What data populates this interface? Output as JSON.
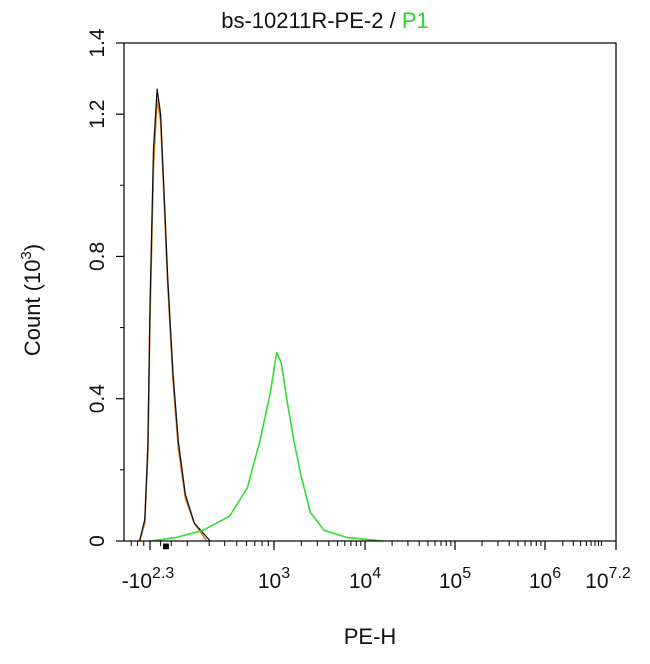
{
  "chart_data": {
    "type": "area",
    "title": {
      "sample": "bs-10211R-PE-2",
      "separator": "/",
      "gate": "P1"
    },
    "xlabel": "PE-H",
    "ylabel": "Count (10^3)",
    "ylabel_parts": {
      "base": "Count (10",
      "exp": "3",
      "close": ")"
    },
    "x_scale": "biexponential (log10 of PE-H)",
    "xlim": [
      -200,
      15800000
    ],
    "ylim": [
      0,
      1.4
    ],
    "x_ticks": [
      {
        "prefix": "-10",
        "exp": "2.3",
        "value": -200
      },
      {
        "prefix": "10",
        "exp": "3",
        "value": 1000
      },
      {
        "prefix": "10",
        "exp": "4",
        "value": 10000
      },
      {
        "prefix": "10",
        "exp": "5",
        "value": 100000
      },
      {
        "prefix": "10",
        "exp": "6",
        "value": 1000000
      },
      {
        "prefix": "10",
        "exp": "7.2",
        "value": 15800000
      }
    ],
    "y_ticks": [
      "0",
      "0.4",
      "0.8",
      "1.2",
      "1.4"
    ],
    "y_tick_values": [
      0,
      0.4,
      0.8,
      1.2,
      1.4
    ],
    "series": [
      {
        "color": "#e08a2a",
        "points": [
          [
            2.2,
            0.0
          ],
          [
            2.25,
            0.05
          ],
          [
            2.28,
            0.25
          ],
          [
            2.3,
            0.62
          ],
          [
            2.32,
            1.05
          ],
          [
            2.34,
            1.24
          ],
          [
            2.36,
            1.18
          ],
          [
            2.38,
            0.95
          ],
          [
            2.4,
            0.72
          ],
          [
            2.43,
            0.45
          ],
          [
            2.46,
            0.26
          ],
          [
            2.5,
            0.12
          ],
          [
            2.55,
            0.05
          ],
          [
            2.62,
            0.0
          ]
        ]
      },
      {
        "color": "#111111",
        "points": [
          [
            2.2,
            0.0
          ],
          [
            2.25,
            0.06
          ],
          [
            2.28,
            0.27
          ],
          [
            2.3,
            0.66
          ],
          [
            2.32,
            1.1
          ],
          [
            2.34,
            1.27
          ],
          [
            2.36,
            1.2
          ],
          [
            2.38,
            0.97
          ],
          [
            2.4,
            0.74
          ],
          [
            2.43,
            0.47
          ],
          [
            2.46,
            0.28
          ],
          [
            2.5,
            0.13
          ],
          [
            2.55,
            0.05
          ],
          [
            2.64,
            0.0
          ]
        ]
      },
      {
        "color": "#33dd33",
        "points": [
          [
            2.3,
            0.0
          ],
          [
            2.45,
            0.01
          ],
          [
            2.6,
            0.03
          ],
          [
            2.75,
            0.07
          ],
          [
            2.85,
            0.15
          ],
          [
            2.92,
            0.28
          ],
          [
            2.98,
            0.42
          ],
          [
            3.03,
            0.53
          ],
          [
            3.08,
            0.5
          ],
          [
            3.14,
            0.4
          ],
          [
            3.22,
            0.28
          ],
          [
            3.3,
            0.18
          ],
          [
            3.4,
            0.08
          ],
          [
            3.55,
            0.03
          ],
          [
            3.8,
            0.01
          ],
          [
            4.2,
            0.0
          ]
        ]
      }
    ],
    "axis_marker": "■"
  }
}
